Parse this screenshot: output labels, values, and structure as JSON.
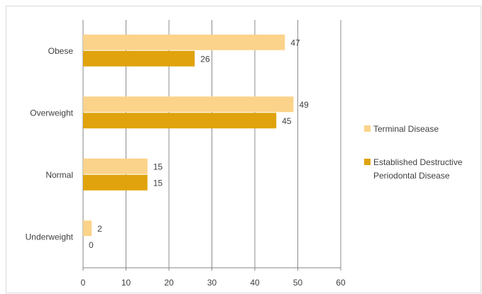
{
  "chart_data": {
    "type": "bar",
    "orientation": "horizontal",
    "categories": [
      "Obese",
      "Overweight",
      "Normal",
      "Underweight"
    ],
    "series": [
      {
        "name": "Terminal Disease",
        "values": [
          47,
          49,
          15,
          2
        ],
        "color": "#fcd38a"
      },
      {
        "name": "Established Destructive Periodontal Disease",
        "values": [
          26,
          45,
          15,
          0
        ],
        "color": "#e0a30d"
      }
    ],
    "xlim": [
      0,
      60
    ],
    "xticks": [
      0,
      10,
      20,
      30,
      40,
      50,
      60
    ],
    "grid": true,
    "legend_position": "right",
    "title": "",
    "xlabel": "",
    "ylabel": ""
  },
  "legend": {
    "item1_label": "Terminal Disease",
    "item2_line1": "Established Destructive",
    "item2_line2": "Periodontal Disease"
  }
}
